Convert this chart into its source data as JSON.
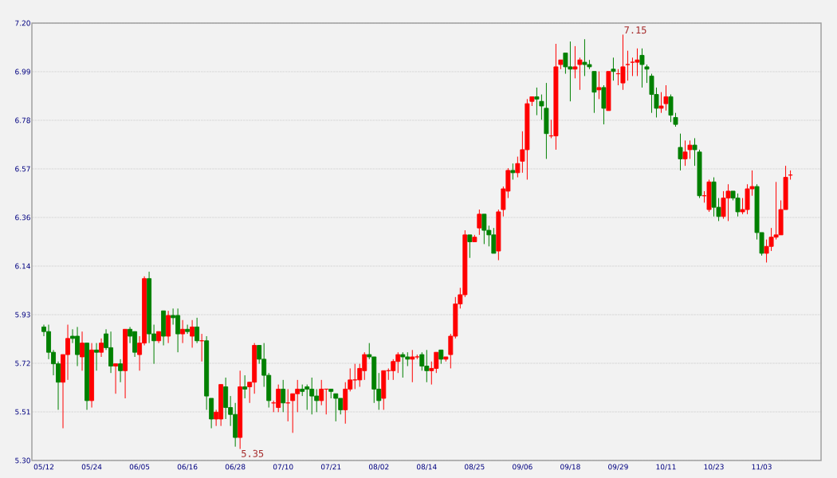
{
  "chart_data": {
    "type": "candlestick",
    "categories": [
      "05/12",
      null,
      null,
      null,
      null,
      null,
      null,
      null,
      null,
      null,
      "05/24",
      null,
      null,
      null,
      null,
      null,
      null,
      null,
      null,
      null,
      "06/05",
      null,
      null,
      null,
      null,
      null,
      null,
      null,
      null,
      null,
      "06/16",
      null,
      null,
      null,
      null,
      null,
      null,
      null,
      null,
      null,
      "06/28",
      null,
      null,
      null,
      null,
      null,
      null,
      null,
      null,
      null,
      "07/10",
      null,
      null,
      null,
      null,
      null,
      null,
      null,
      null,
      null,
      "07/21",
      null,
      null,
      null,
      null,
      null,
      null,
      null,
      null,
      null,
      "08/02",
      null,
      null,
      null,
      null,
      null,
      null,
      null,
      null,
      null,
      "08/14",
      null,
      null,
      null,
      null,
      null,
      null,
      null,
      null,
      null,
      "08/25",
      null,
      null,
      null,
      null,
      null,
      null,
      null,
      null,
      null,
      "09/06",
      null,
      null,
      null,
      null,
      null,
      null,
      null,
      null,
      null,
      "09/18",
      null,
      null,
      null,
      null,
      null,
      null,
      null,
      null,
      null,
      "09/29",
      null,
      null,
      null,
      null,
      null,
      null,
      null,
      null,
      null,
      "10/11",
      null,
      null,
      null,
      null,
      null,
      null,
      null,
      null,
      null,
      "10/23",
      null,
      null,
      null,
      null,
      null,
      null,
      null,
      null,
      null,
      "11/03",
      null,
      null,
      null,
      null,
      null,
      null
    ],
    "ohlc": [
      [
        5.88,
        5.89,
        5.84,
        5.86
      ],
      [
        5.86,
        5.89,
        5.74,
        5.77
      ],
      [
        5.77,
        5.78,
        5.67,
        5.72
      ],
      [
        5.72,
        5.73,
        5.52,
        5.64
      ],
      [
        5.64,
        5.76,
        5.44,
        5.76
      ],
      [
        5.76,
        5.89,
        5.65,
        5.83
      ],
      [
        5.84,
        5.87,
        5.81,
        5.83
      ],
      [
        5.84,
        5.88,
        5.71,
        5.76
      ],
      [
        5.75,
        5.86,
        5.69,
        5.81
      ],
      [
        5.81,
        5.81,
        5.52,
        5.56
      ],
      [
        5.56,
        5.81,
        5.53,
        5.78
      ],
      [
        5.78,
        5.81,
        5.69,
        5.77
      ],
      [
        5.77,
        5.83,
        5.75,
        5.81
      ],
      [
        5.85,
        5.87,
        5.78,
        5.79
      ],
      [
        5.79,
        5.86,
        5.68,
        5.71
      ],
      [
        5.71,
        5.72,
        5.59,
        5.72
      ],
      [
        5.72,
        5.74,
        5.64,
        5.69
      ],
      [
        5.69,
        5.87,
        5.57,
        5.87
      ],
      [
        5.87,
        5.88,
        5.81,
        5.84
      ],
      [
        5.86,
        5.86,
        5.75,
        5.77
      ],
      [
        5.76,
        5.84,
        5.69,
        5.81
      ],
      [
        5.81,
        6.1,
        5.8,
        6.09
      ],
      [
        6.09,
        6.12,
        5.81,
        5.85
      ],
      [
        5.85,
        5.89,
        5.72,
        5.82
      ],
      [
        5.82,
        5.86,
        5.81,
        5.86
      ],
      [
        5.95,
        5.95,
        5.8,
        5.84
      ],
      [
        5.84,
        5.95,
        5.81,
        5.93
      ],
      [
        5.93,
        5.96,
        5.89,
        5.92
      ],
      [
        5.93,
        5.96,
        5.77,
        5.85
      ],
      [
        5.85,
        5.91,
        5.81,
        5.87
      ],
      [
        5.87,
        5.89,
        5.85,
        5.86
      ],
      [
        5.84,
        5.91,
        5.79,
        5.88
      ],
      [
        5.88,
        5.92,
        5.81,
        5.82
      ],
      [
        5.82,
        5.85,
        5.73,
        5.82
      ],
      [
        5.82,
        5.84,
        5.52,
        5.58
      ],
      [
        5.57,
        5.57,
        5.44,
        5.48
      ],
      [
        5.48,
        5.52,
        5.45,
        5.51
      ],
      [
        5.48,
        5.63,
        5.45,
        5.63
      ],
      [
        5.62,
        5.66,
        5.48,
        5.53
      ],
      [
        5.53,
        5.58,
        5.45,
        5.5
      ],
      [
        5.5,
        5.55,
        5.36,
        5.4
      ],
      [
        5.4,
        5.69,
        5.35,
        5.62
      ],
      [
        5.62,
        5.67,
        5.57,
        5.61
      ],
      [
        5.62,
        5.64,
        5.55,
        5.64
      ],
      [
        5.64,
        5.81,
        5.59,
        5.8
      ],
      [
        5.8,
        5.8,
        5.72,
        5.74
      ],
      [
        5.74,
        5.81,
        5.62,
        5.67
      ],
      [
        5.67,
        5.68,
        5.53,
        5.56
      ],
      [
        5.55,
        5.56,
        5.51,
        5.55
      ],
      [
        5.53,
        5.63,
        5.51,
        5.61
      ],
      [
        5.61,
        5.65,
        5.51,
        5.55
      ],
      [
        5.55,
        5.61,
        5.47,
        5.55
      ],
      [
        5.56,
        5.59,
        5.42,
        5.59
      ],
      [
        5.59,
        5.65,
        5.51,
        5.61
      ],
      [
        5.61,
        5.63,
        5.58,
        5.6
      ],
      [
        5.62,
        5.63,
        5.52,
        5.61
      ],
      [
        5.61,
        5.66,
        5.5,
        5.58
      ],
      [
        5.58,
        5.61,
        5.51,
        5.56
      ],
      [
        5.56,
        5.65,
        5.54,
        5.61
      ],
      [
        5.61,
        5.61,
        5.5,
        5.61
      ],
      [
        5.61,
        5.61,
        5.57,
        5.6
      ],
      [
        5.59,
        5.59,
        5.47,
        5.57
      ],
      [
        5.57,
        5.57,
        5.5,
        5.52
      ],
      [
        5.52,
        5.64,
        5.46,
        5.61
      ],
      [
        5.61,
        5.7,
        5.6,
        5.65
      ],
      [
        5.65,
        5.72,
        5.61,
        5.65
      ],
      [
        5.65,
        5.72,
        5.62,
        5.7
      ],
      [
        5.69,
        5.77,
        5.65,
        5.76
      ],
      [
        5.76,
        5.81,
        5.74,
        5.75
      ],
      [
        5.75,
        5.75,
        5.55,
        5.61
      ],
      [
        5.61,
        5.68,
        5.52,
        5.56
      ],
      [
        5.57,
        5.69,
        5.52,
        5.69
      ],
      [
        5.69,
        5.7,
        5.65,
        5.69
      ],
      [
        5.69,
        5.74,
        5.65,
        5.73
      ],
      [
        5.73,
        5.77,
        5.68,
        5.76
      ],
      [
        5.76,
        5.77,
        5.66,
        5.75
      ],
      [
        5.75,
        5.77,
        5.71,
        5.74
      ],
      [
        5.74,
        5.78,
        5.64,
        5.75
      ],
      [
        5.75,
        5.76,
        5.74,
        5.75
      ],
      [
        5.76,
        5.77,
        5.69,
        5.71
      ],
      [
        5.71,
        5.78,
        5.64,
        5.69
      ],
      [
        5.69,
        5.73,
        5.63,
        5.7
      ],
      [
        5.7,
        5.77,
        5.68,
        5.77
      ],
      [
        5.78,
        5.78,
        5.72,
        5.74
      ],
      [
        5.74,
        5.75,
        5.73,
        5.75
      ],
      [
        5.76,
        5.85,
        5.7,
        5.84
      ],
      [
        5.84,
        6.01,
        5.83,
        5.98
      ],
      [
        5.98,
        6.05,
        5.96,
        6.02
      ],
      [
        6.02,
        6.3,
        6.01,
        6.28
      ],
      [
        6.28,
        6.28,
        6.18,
        6.25
      ],
      [
        6.25,
        6.28,
        6.25,
        6.27
      ],
      [
        6.31,
        6.39,
        6.28,
        6.37
      ],
      [
        6.37,
        6.37,
        6.24,
        6.3
      ],
      [
        6.3,
        6.32,
        6.23,
        6.28
      ],
      [
        6.28,
        6.31,
        6.2,
        6.2
      ],
      [
        6.21,
        6.39,
        6.17,
        6.38
      ],
      [
        6.39,
        6.49,
        6.36,
        6.48
      ],
      [
        6.47,
        6.57,
        6.44,
        6.56
      ],
      [
        6.56,
        6.59,
        6.52,
        6.55
      ],
      [
        6.55,
        6.62,
        6.53,
        6.59
      ],
      [
        6.6,
        6.73,
        6.55,
        6.65
      ],
      [
        6.65,
        6.87,
        6.52,
        6.85
      ],
      [
        6.86,
        6.88,
        6.84,
        6.88
      ],
      [
        6.88,
        6.92,
        6.8,
        6.87
      ],
      [
        6.86,
        6.89,
        6.78,
        6.84
      ],
      [
        6.83,
        6.94,
        6.61,
        6.72
      ],
      [
        6.71,
        6.78,
        6.7,
        6.71
      ],
      [
        6.71,
        7.11,
        6.65,
        7.01
      ],
      [
        7.02,
        7.04,
        7.0,
        7.04
      ],
      [
        7.07,
        7.07,
        6.98,
        7.01
      ],
      [
        7.01,
        7.12,
        6.86,
        7.0
      ],
      [
        7.0,
        7.1,
        6.96,
        7.01
      ],
      [
        7.02,
        7.05,
        6.91,
        7.04
      ],
      [
        7.03,
        7.13,
        6.97,
        7.02
      ],
      [
        7.02,
        7.04,
        7.0,
        7.01
      ],
      [
        6.99,
        6.99,
        6.81,
        6.9
      ],
      [
        6.91,
        6.99,
        6.87,
        6.92
      ],
      [
        6.92,
        6.93,
        6.76,
        6.83
      ],
      [
        6.82,
        6.99,
        6.82,
        6.99
      ],
      [
        7.0,
        7.05,
        6.95,
        6.99
      ],
      [
        6.98,
        7.0,
        6.93,
        6.98
      ],
      [
        6.94,
        7.15,
        6.91,
        7.01
      ],
      [
        7.02,
        7.08,
        6.95,
        7.02
      ],
      [
        7.03,
        7.05,
        6.97,
        7.03
      ],
      [
        7.03,
        7.09,
        6.97,
        7.04
      ],
      [
        7.06,
        7.09,
        6.92,
        7.02
      ],
      [
        7.01,
        7.02,
        6.94,
        7.0
      ],
      [
        6.97,
        6.98,
        6.81,
        6.89
      ],
      [
        6.89,
        6.92,
        6.79,
        6.83
      ],
      [
        6.83,
        6.9,
        6.81,
        6.84
      ],
      [
        6.85,
        6.93,
        6.82,
        6.88
      ],
      [
        6.88,
        6.89,
        6.77,
        6.8
      ],
      [
        6.79,
        6.81,
        6.75,
        6.76
      ],
      [
        6.66,
        6.72,
        6.56,
        6.61
      ],
      [
        6.61,
        6.69,
        6.58,
        6.64
      ],
      [
        6.65,
        6.69,
        6.61,
        6.67
      ],
      [
        6.67,
        6.7,
        6.58,
        6.65
      ],
      [
        6.64,
        6.65,
        6.44,
        6.45
      ],
      [
        6.45,
        6.47,
        6.42,
        6.45
      ],
      [
        6.39,
        6.52,
        6.38,
        6.51
      ],
      [
        6.51,
        6.53,
        6.36,
        6.4
      ],
      [
        6.4,
        6.44,
        6.34,
        6.36
      ],
      [
        6.36,
        6.47,
        6.35,
        6.44
      ],
      [
        6.44,
        6.5,
        6.34,
        6.47
      ],
      [
        6.47,
        6.47,
        6.43,
        6.44
      ],
      [
        6.44,
        6.46,
        6.36,
        6.38
      ],
      [
        6.38,
        6.44,
        6.37,
        6.39
      ],
      [
        6.39,
        6.5,
        6.37,
        6.48
      ],
      [
        6.48,
        6.56,
        6.45,
        6.49
      ],
      [
        6.49,
        6.5,
        6.26,
        6.29
      ],
      [
        6.29,
        6.29,
        6.19,
        6.2
      ],
      [
        6.2,
        6.26,
        6.16,
        6.23
      ],
      [
        6.23,
        6.31,
        6.21,
        6.27
      ],
      [
        6.27,
        6.51,
        6.26,
        6.28
      ],
      [
        6.28,
        6.43,
        6.28,
        6.39
      ],
      [
        6.39,
        6.58,
        6.39,
        6.53
      ],
      [
        6.54,
        6.56,
        6.52,
        6.54
      ]
    ],
    "ylim": [
      5.3,
      7.2
    ],
    "yticks": [
      {
        "value": 5.3,
        "label": "5.30"
      },
      {
        "value": 5.5111,
        "label": "5.51"
      },
      {
        "value": 5.7222,
        "label": "5.72"
      },
      {
        "value": 5.9333,
        "label": "5.93"
      },
      {
        "value": 6.1444,
        "label": "6.14"
      },
      {
        "value": 6.3556,
        "label": "6.36"
      },
      {
        "value": 6.5667,
        "label": "6.57"
      },
      {
        "value": 6.7778,
        "label": "6.78"
      },
      {
        "value": 6.9889,
        "label": "6.99"
      },
      {
        "value": 7.2,
        "label": "7.20"
      }
    ],
    "grid": "y",
    "annotations": [
      "7.15",
      "5.35"
    ]
  }
}
